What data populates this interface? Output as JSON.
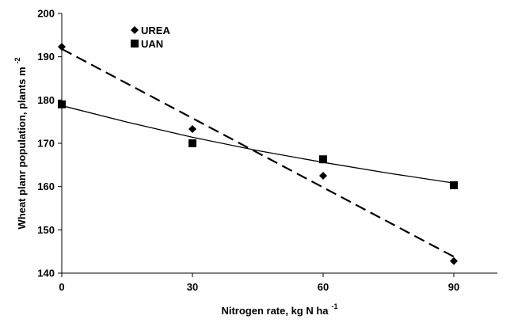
{
  "chart_data": {
    "type": "scatter",
    "xlabel": "Nitrogen rate, kg N ha",
    "xlabel_sup": "-1",
    "ylabel": "Wheat planr population, plants m",
    "ylabel_sup": "-2",
    "xlim": [
      0,
      100
    ],
    "ylim": [
      140,
      200
    ],
    "x_ticks": [
      0,
      30,
      60,
      90
    ],
    "y_ticks": [
      140,
      150,
      160,
      170,
      180,
      190,
      200
    ],
    "grid": false,
    "legend_position": "top-left",
    "series": [
      {
        "name": "UREA",
        "marker": "diamond",
        "points": [
          [
            0,
            192.3
          ],
          [
            30,
            173.3
          ],
          [
            60,
            162.5
          ],
          [
            90,
            142.8
          ]
        ],
        "trend": {
          "style": "dashed",
          "x": [
            0,
            90
          ],
          "y": [
            191.8,
            143.8
          ]
        },
        "color": "#000000"
      },
      {
        "name": "UAN",
        "marker": "square",
        "points": [
          [
            0,
            179.0
          ],
          [
            30,
            170.0
          ],
          [
            60,
            166.3
          ],
          [
            90,
            160.3
          ]
        ],
        "trend": {
          "style": "solid",
          "x": [
            0,
            15,
            30,
            45,
            60,
            75,
            90
          ],
          "y": [
            178.7,
            174.9,
            171.4,
            168.3,
            165.6,
            163.1,
            160.8
          ]
        },
        "color": "#000000"
      }
    ]
  }
}
